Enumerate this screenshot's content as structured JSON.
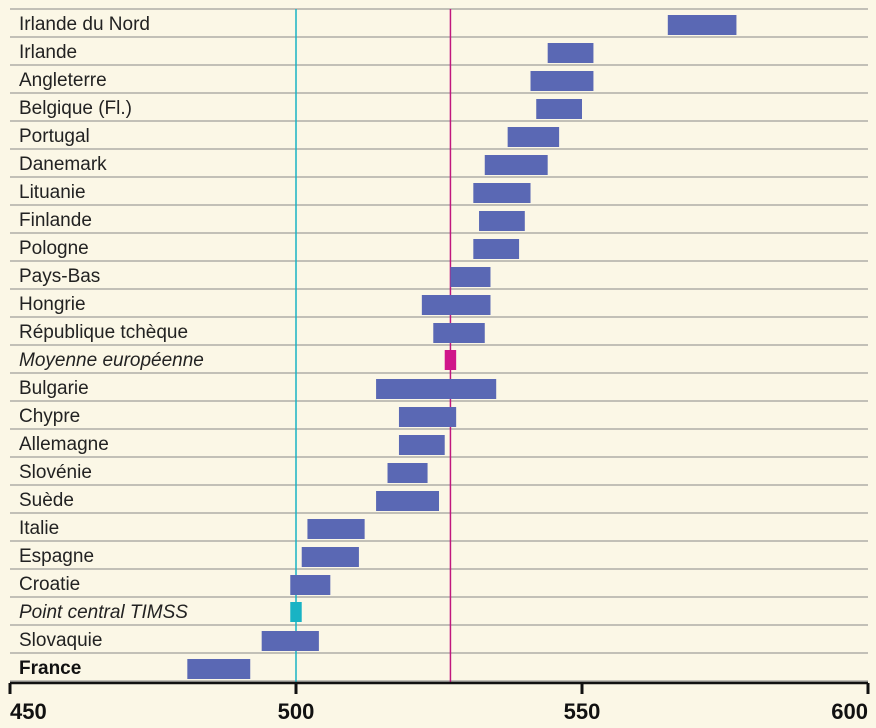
{
  "chart_data": {
    "type": "range-bar",
    "xlim": [
      450,
      600
    ],
    "xticks": [
      450,
      500,
      550,
      600
    ],
    "xtick_labels": [
      "450",
      "500",
      "550",
      "600"
    ],
    "grid": "horizontal rows",
    "reference_lines": [
      {
        "label": "Point central TIMSS",
        "value": 500,
        "color": "#19b3c4"
      },
      {
        "label": "Moyenne européenne",
        "value": 527,
        "color": "#c0177e"
      }
    ],
    "categories": [
      {
        "label": "Irlande du Nord",
        "low": 565,
        "high": 577,
        "style": "normal"
      },
      {
        "label": "Irlande",
        "low": 544,
        "high": 552,
        "style": "normal"
      },
      {
        "label": "Angleterre",
        "low": 541,
        "high": 552,
        "style": "normal"
      },
      {
        "label": "Belgique (Fl.)",
        "low": 542,
        "high": 550,
        "style": "normal"
      },
      {
        "label": "Portugal",
        "low": 537,
        "high": 546,
        "style": "normal"
      },
      {
        "label": "Danemark",
        "low": 533,
        "high": 544,
        "style": "normal"
      },
      {
        "label": "Lituanie",
        "low": 531,
        "high": 541,
        "style": "normal"
      },
      {
        "label": "Finlande",
        "low": 532,
        "high": 540,
        "style": "normal"
      },
      {
        "label": "Pologne",
        "low": 531,
        "high": 539,
        "style": "normal"
      },
      {
        "label": "Pays-Bas",
        "low": 527,
        "high": 534,
        "style": "normal"
      },
      {
        "label": "Hongrie",
        "low": 522,
        "high": 534,
        "style": "normal"
      },
      {
        "label": "République tchèque",
        "low": 524,
        "high": 533,
        "style": "normal"
      },
      {
        "label": "Moyenne européenne",
        "low": 526,
        "high": 528,
        "style": "europe"
      },
      {
        "label": "Bulgarie",
        "low": 514,
        "high": 535,
        "style": "normal"
      },
      {
        "label": "Chypre",
        "low": 518,
        "high": 528,
        "style": "normal"
      },
      {
        "label": "Allemagne",
        "low": 518,
        "high": 526,
        "style": "normal"
      },
      {
        "label": "Slovénie",
        "low": 516,
        "high": 523,
        "style": "normal"
      },
      {
        "label": "Suède",
        "low": 514,
        "high": 525,
        "style": "normal"
      },
      {
        "label": "Italie",
        "low": 502,
        "high": 512,
        "style": "normal"
      },
      {
        "label": "Espagne",
        "low": 501,
        "high": 511,
        "style": "normal"
      },
      {
        "label": "Croatie",
        "low": 499,
        "high": 506,
        "style": "normal"
      },
      {
        "label": "Point central TIMSS",
        "low": 499,
        "high": 501,
        "style": "timss"
      },
      {
        "label": "Slovaquie",
        "low": 494,
        "high": 504,
        "style": "normal"
      },
      {
        "label": "France",
        "low": 481,
        "high": 492,
        "style": "bold"
      }
    ],
    "colors": {
      "bar": "#5a68b4",
      "europe": "#d0168a",
      "timss": "#19b3c4",
      "grid": "#888888",
      "background": "#fbf7e6"
    }
  }
}
